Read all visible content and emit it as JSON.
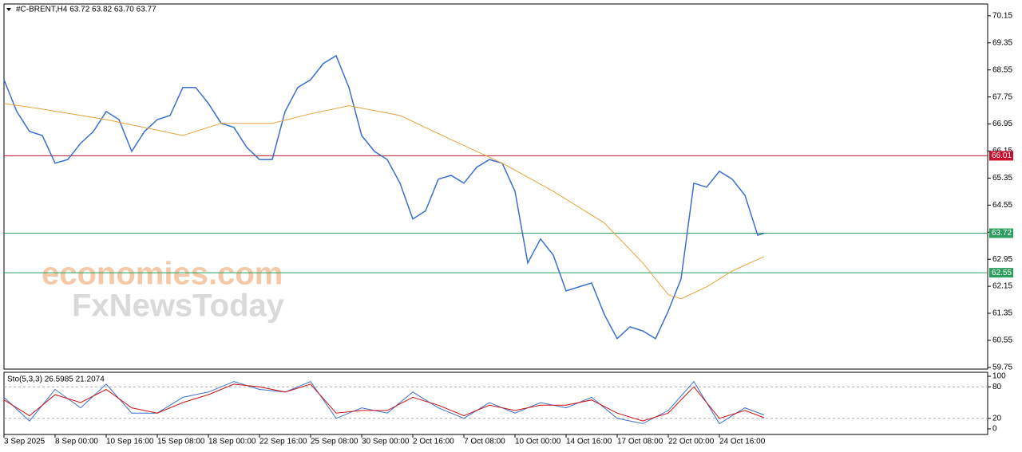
{
  "chart_data": {
    "type": "line",
    "title": "#C-BRENT,H4  63.72 63.82 63.70 63.77",
    "watermarks": [
      "economies.com",
      "FxNewsToday"
    ],
    "xlim": [
      0,
      308
    ],
    "xticks": [
      {
        "value": 0,
        "label": "3 Sep 2025"
      },
      {
        "value": 16,
        "label": "8 Sep 00:00"
      },
      {
        "value": 32,
        "label": "10 Sep 16:00"
      },
      {
        "value": 48,
        "label": "15 Sep 08:00"
      },
      {
        "value": 64,
        "label": "18 Sep 00:00"
      },
      {
        "value": 80,
        "label": "22 Sep 16:00"
      },
      {
        "value": 96,
        "label": "25 Sep 08:00"
      },
      {
        "value": 112,
        "label": "30 Sep 00:00"
      },
      {
        "value": 128,
        "label": "2 Oct 16:00"
      },
      {
        "value": 144,
        "label": "7 Oct 08:00"
      },
      {
        "value": 160,
        "label": "10 Oct 00:00"
      },
      {
        "value": 176,
        "label": "14 Oct 16:00"
      },
      {
        "value": 192,
        "label": "17 Oct 08:00"
      },
      {
        "value": 208,
        "label": "22 Oct 00:00"
      },
      {
        "value": 224,
        "label": "24 Oct 16:00"
      }
    ],
    "ylim": [
      59.7,
      70.5
    ],
    "yticks": [
      59.75,
      60.55,
      61.35,
      62.15,
      62.95,
      63.75,
      64.55,
      65.35,
      66.15,
      66.95,
      67.75,
      68.55,
      69.35,
      70.15
    ],
    "levels": [
      {
        "value": 66.01,
        "color": "#c8102e"
      },
      {
        "value": 63.72,
        "color": "#2e9e5e"
      },
      {
        "value": 62.55,
        "color": "#2e9e5e"
      }
    ],
    "series": [
      {
        "color": "#3a6fd0",
        "x": [
          0,
          4,
          8,
          12,
          16,
          20,
          24,
          28,
          32,
          36,
          40,
          44,
          48,
          52,
          56,
          60,
          64,
          68,
          72,
          76,
          80,
          84,
          88,
          92,
          96,
          100,
          104,
          108,
          112,
          116,
          120,
          124,
          128,
          132,
          136,
          140,
          144,
          148,
          152,
          156,
          160,
          164,
          168,
          172,
          176,
          180,
          184,
          188,
          192,
          196,
          200,
          204,
          208,
          212,
          216,
          220,
          224,
          228,
          232,
          236,
          238
        ],
        "values": [
          68.26,
          67.32,
          66.73,
          66.61,
          65.79,
          65.9,
          66.38,
          66.73,
          67.32,
          67.08,
          66.14,
          66.73,
          67.08,
          67.2,
          68.03,
          68.03,
          67.56,
          66.97,
          66.85,
          66.26,
          65.9,
          65.9,
          67.32,
          68.03,
          68.26,
          68.74,
          68.97,
          68.03,
          66.61,
          66.14,
          65.9,
          65.2,
          64.14,
          64.38,
          65.32,
          65.43,
          65.2,
          65.67,
          65.9,
          65.79,
          64.96,
          62.84,
          63.55,
          63.07,
          62.01,
          62.13,
          62.25,
          61.31,
          60.6,
          60.95,
          60.83,
          60.6,
          61.42,
          62.37,
          65.2,
          65.08,
          65.55,
          65.32,
          64.84,
          63.66,
          63.72
        ]
      },
      {
        "color": "#e8a33c",
        "x": [
          0,
          12,
          32,
          56,
          68,
          84,
          96,
          108,
          124,
          140,
          156,
          172,
          188,
          200,
          208,
          212,
          220,
          228,
          238
        ],
        "values": [
          67.56,
          67.39,
          67.08,
          66.61,
          66.97,
          66.97,
          67.25,
          67.49,
          67.2,
          66.49,
          65.79,
          64.96,
          64.02,
          62.84,
          61.9,
          61.78,
          62.13,
          62.6,
          63.03
        ]
      }
    ],
    "indicator": {
      "label": "Sto(5,3,3) 26.5985 21.2074",
      "ylim": [
        -10.6,
        107.6
      ],
      "yticks": [
        0,
        20,
        80,
        100
      ],
      "levels": [
        20,
        80
      ],
      "series": [
        {
          "color": "#3a6fd0",
          "x": [
            0,
            8,
            16,
            24,
            32,
            40,
            48,
            56,
            64,
            72,
            80,
            88,
            96,
            104,
            112,
            120,
            128,
            136,
            144,
            152,
            160,
            168,
            176,
            184,
            192,
            200,
            208,
            216,
            224,
            232,
            238
          ],
          "values": [
            60,
            15,
            75,
            40,
            85,
            30,
            30,
            60,
            70,
            90,
            75,
            70,
            90,
            20,
            40,
            30,
            70,
            40,
            20,
            50,
            30,
            50,
            40,
            60,
            20,
            10,
            35,
            90,
            10,
            40,
            26.6
          ]
        },
        {
          "color": "#d01010",
          "x": [
            0,
            8,
            16,
            24,
            32,
            40,
            48,
            56,
            64,
            72,
            80,
            88,
            96,
            104,
            112,
            120,
            128,
            136,
            144,
            152,
            160,
            168,
            176,
            184,
            192,
            200,
            208,
            216,
            224,
            232,
            238
          ],
          "values": [
            55,
            25,
            65,
            50,
            75,
            40,
            30,
            50,
            65,
            85,
            80,
            70,
            85,
            30,
            35,
            35,
            60,
            45,
            25,
            45,
            35,
            45,
            45,
            55,
            30,
            15,
            30,
            80,
            20,
            35,
            21.2
          ]
        }
      ]
    }
  }
}
